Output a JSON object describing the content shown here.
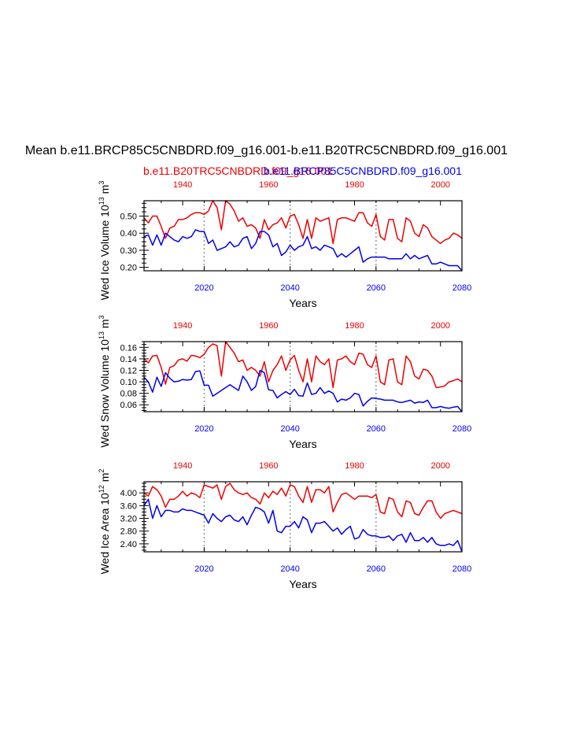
{
  "title": "Mean b.e11.BRCP85C5CNBDRD.f09_g16.001-b.e11.B20TRC5CNBDRD.f09_g16.001",
  "legend": {
    "red_label": "b.e11.B20TRC5CNBDRD.f09_g16.001",
    "blue_label": "b.e11.BRCP85C5CNBDRD.f09_g16.001",
    "red_color": "#ee0000",
    "blue_color": "#0000ee"
  },
  "chart_data": [
    {
      "type": "line",
      "ylabel": "Wed Ice Volume 10",
      "ylabel_exp": "13",
      "ylabel_unit": "m",
      "ylabel_unit_exp": "3",
      "xlabel": "Years",
      "ylim": [
        0.18,
        0.59
      ],
      "yticks": [
        0.2,
        0.3,
        0.4,
        0.5
      ],
      "ytick_labels": [
        "0.20",
        "0.30",
        "0.40",
        "0.50"
      ],
      "bottom_axis": {
        "name": "b.e11.BRCP85C5CNBDRD.f09_g16.001",
        "range": [
          2006,
          2080
        ],
        "ticks": [
          2020,
          2040,
          2060,
          2080
        ]
      },
      "top_axis": {
        "name": "b.e11.B20TRC5CNBDRD.f09_g16.001",
        "range": [
          1931,
          2005
        ],
        "ticks": [
          1940,
          1960,
          1980,
          2000
        ]
      },
      "series": [
        {
          "name": "b.e11.B20TRC5CNBDRD.f09_g16.001",
          "color": "#ee0000",
          "values": [
            0.49,
            0.46,
            0.5,
            0.5,
            0.44,
            0.37,
            0.43,
            0.44,
            0.48,
            0.48,
            0.49,
            0.51,
            0.52,
            0.52,
            0.51,
            0.53,
            0.59,
            0.55,
            0.42,
            0.59,
            0.57,
            0.53,
            0.47,
            0.49,
            0.44,
            0.45,
            0.43,
            0.37,
            0.48,
            0.42,
            0.45,
            0.46,
            0.49,
            0.43,
            0.5,
            0.51,
            0.45,
            0.37,
            0.48,
            0.37,
            0.49,
            0.47,
            0.48,
            0.49,
            0.34,
            0.48,
            0.49,
            0.49,
            0.48,
            0.47,
            0.52,
            0.52,
            0.46,
            0.44,
            0.51,
            0.38,
            0.36,
            0.48,
            0.48,
            0.37,
            0.35,
            0.49,
            0.47,
            0.4,
            0.38,
            0.45,
            0.43,
            0.38,
            0.36,
            0.34,
            0.36,
            0.37,
            0.4,
            0.39,
            0.37
          ]
        },
        {
          "name": "b.e11.BRCP85C5CNBDRD.f09_g16.001",
          "color": "#0000ee",
          "values": [
            0.38,
            0.39,
            0.33,
            0.39,
            0.33,
            0.4,
            0.38,
            0.36,
            0.35,
            0.38,
            0.37,
            0.38,
            0.42,
            0.41,
            0.41,
            0.34,
            0.36,
            0.3,
            0.31,
            0.32,
            0.35,
            0.32,
            0.33,
            0.37,
            0.38,
            0.31,
            0.34,
            0.41,
            0.41,
            0.39,
            0.32,
            0.34,
            0.27,
            0.29,
            0.33,
            0.3,
            0.32,
            0.33,
            0.38,
            0.31,
            0.32,
            0.3,
            0.33,
            0.32,
            0.31,
            0.26,
            0.28,
            0.26,
            0.28,
            0.3,
            0.32,
            0.23,
            0.25,
            0.26,
            0.26,
            0.26,
            0.26,
            0.25,
            0.25,
            0.25,
            0.25,
            0.28,
            0.25,
            0.27,
            0.25,
            0.26,
            0.27,
            0.22,
            0.22,
            0.23,
            0.22,
            0.21,
            0.21,
            0.21,
            0.18
          ]
        }
      ]
    },
    {
      "type": "line",
      "ylabel": "Wed Snow Volume 10",
      "ylabel_exp": "13",
      "ylabel_unit": "m",
      "ylabel_unit_exp": "3",
      "xlabel": "Years",
      "ylim": [
        0.048,
        0.17
      ],
      "yticks": [
        0.06,
        0.08,
        0.1,
        0.12,
        0.14,
        0.16
      ],
      "ytick_labels": [
        "0.06",
        "0.08",
        "0.10",
        "0.12",
        "0.14",
        "0.16"
      ],
      "bottom_axis": {
        "name": "b.e11.BRCP85C5CNBDRD.f09_g16.001",
        "range": [
          2006,
          2080
        ],
        "ticks": [
          2020,
          2040,
          2060,
          2080
        ]
      },
      "top_axis": {
        "name": "b.e11.B20TRC5CNBDRD.f09_g16.001",
        "range": [
          1931,
          2005
        ],
        "ticks": [
          1940,
          1960,
          1980,
          2000
        ]
      },
      "series": [
        {
          "name": "b.e11.B20TRC5CNBDRD.f09_g16.001",
          "color": "#ee0000",
          "values": [
            0.14,
            0.133,
            0.145,
            0.146,
            0.125,
            0.096,
            0.125,
            0.128,
            0.138,
            0.14,
            0.136,
            0.146,
            0.145,
            0.142,
            0.148,
            0.16,
            0.166,
            0.163,
            0.11,
            0.17,
            0.16,
            0.15,
            0.135,
            0.138,
            0.12,
            0.125,
            0.12,
            0.11,
            0.135,
            0.1,
            0.12,
            0.13,
            0.145,
            0.12,
            0.138,
            0.146,
            0.12,
            0.1,
            0.14,
            0.1,
            0.145,
            0.135,
            0.13,
            0.14,
            0.09,
            0.138,
            0.14,
            0.145,
            0.135,
            0.13,
            0.15,
            0.148,
            0.13,
            0.125,
            0.145,
            0.1,
            0.095,
            0.138,
            0.14,
            0.1,
            0.095,
            0.145,
            0.135,
            0.11,
            0.105,
            0.122,
            0.12,
            0.11,
            0.09,
            0.091,
            0.093,
            0.1,
            0.102,
            0.105,
            0.1
          ]
        },
        {
          "name": "b.e11.BRCP85C5CNBDRD.f09_g16.001",
          "color": "#0000ee",
          "values": [
            0.108,
            0.1,
            0.082,
            0.108,
            0.092,
            0.116,
            0.106,
            0.1,
            0.101,
            0.104,
            0.103,
            0.104,
            0.118,
            0.119,
            0.094,
            0.094,
            0.075,
            0.08,
            0.085,
            0.09,
            0.095,
            0.09,
            0.085,
            0.11,
            0.1,
            0.085,
            0.092,
            0.12,
            0.116,
            0.086,
            0.085,
            0.072,
            0.078,
            0.083,
            0.078,
            0.087,
            0.076,
            0.075,
            0.098,
            0.078,
            0.08,
            0.09,
            0.08,
            0.084,
            0.08,
            0.065,
            0.07,
            0.068,
            0.072,
            0.08,
            0.078,
            0.058,
            0.066,
            0.072,
            0.071,
            0.07,
            0.068,
            0.068,
            0.068,
            0.065,
            0.064,
            0.066,
            0.068,
            0.063,
            0.065,
            0.064,
            0.068,
            0.055,
            0.055,
            0.057,
            0.055,
            0.054,
            0.056,
            0.057,
            0.048
          ]
        }
      ]
    },
    {
      "type": "line",
      "ylabel": "Wed Ice Area 10",
      "ylabel_exp": "12",
      "ylabel_unit": "m",
      "ylabel_unit_exp": "2",
      "xlabel": "Years",
      "ylim": [
        2.15,
        4.35
      ],
      "yticks": [
        2.4,
        2.8,
        3.2,
        3.6,
        4.0
      ],
      "ytick_labels": [
        "2.40",
        "2.80",
        "3.20",
        "3.60",
        "4.00"
      ],
      "bottom_axis": {
        "name": "b.e11.BRCP85C5CNBDRD.f09_g16.001",
        "range": [
          2006,
          2080
        ],
        "ticks": [
          2020,
          2040,
          2060,
          2080
        ]
      },
      "top_axis": {
        "name": "b.e11.B20TRC5CNBDRD.f09_g16.001",
        "range": [
          1931,
          2005
        ],
        "ticks": [
          1940,
          1960,
          1980,
          2000
        ]
      },
      "series": [
        {
          "name": "b.e11.B20TRC5CNBDRD.f09_g16.001",
          "color": "#ee0000",
          "values": [
            4.0,
            3.9,
            4.2,
            4.1,
            3.9,
            3.55,
            3.8,
            3.8,
            3.9,
            4.05,
            3.9,
            4.0,
            3.95,
            3.85,
            4.25,
            4.2,
            4.15,
            4.25,
            3.8,
            4.2,
            4.3,
            4.1,
            4.0,
            3.95,
            4.0,
            3.85,
            3.8,
            3.65,
            4.0,
            3.85,
            4.05,
            3.95,
            4.15,
            3.9,
            4.25,
            4.2,
            3.9,
            3.7,
            4.2,
            3.7,
            4.1,
            4.1,
            4.0,
            4.2,
            3.4,
            3.7,
            3.95,
            4.0,
            3.9,
            3.8,
            3.9,
            3.9,
            3.9,
            3.85,
            3.95,
            3.4,
            3.35,
            3.85,
            3.8,
            3.4,
            3.25,
            3.75,
            3.7,
            3.35,
            3.3,
            3.55,
            3.75,
            3.75,
            3.4,
            3.2,
            3.35,
            3.4,
            3.45,
            3.4,
            3.35
          ]
        },
        {
          "name": "b.e11.BRCP85C5CNBDRD.f09_g16.001",
          "color": "#0000ee",
          "values": [
            3.6,
            3.8,
            3.2,
            3.6,
            3.25,
            3.45,
            3.45,
            3.4,
            3.4,
            3.5,
            3.45,
            3.45,
            3.4,
            3.35,
            3.3,
            3.05,
            3.35,
            3.2,
            3.1,
            3.25,
            3.3,
            3.15,
            3.1,
            3.25,
            3.0,
            3.3,
            3.55,
            3.5,
            3.4,
            3.05,
            3.45,
            2.8,
            2.75,
            2.95,
            2.95,
            3.1,
            2.9,
            3.25,
            3.15,
            2.75,
            3.05,
            3.05,
            3.1,
            2.95,
            2.8,
            2.9,
            2.7,
            2.85,
            2.95,
            2.55,
            2.6,
            2.85,
            2.7,
            2.65,
            2.65,
            2.6,
            2.6,
            2.65,
            2.5,
            2.65,
            2.7,
            2.45,
            2.75,
            2.5,
            2.5,
            2.6,
            2.45,
            2.6,
            2.4,
            2.35,
            2.35,
            2.4,
            2.35,
            2.5,
            2.15
          ]
        }
      ]
    }
  ]
}
